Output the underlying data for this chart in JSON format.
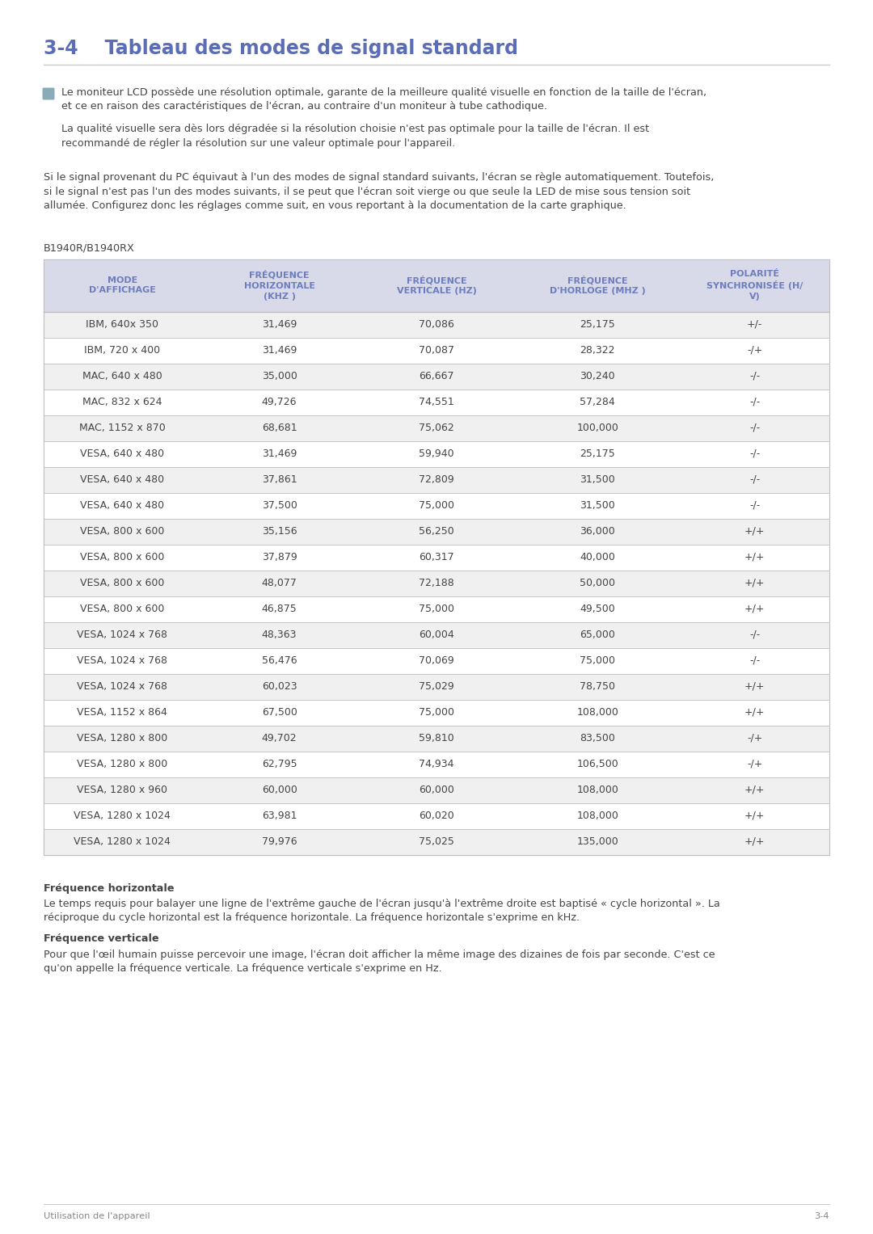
{
  "title": "3-4    Tableau des modes de signal standard",
  "title_color": "#5b6db5",
  "bg_color": "#ffffff",
  "note_icon_color": "#8aacb8",
  "note_text1_line1": "Le moniteur LCD possède une résolution optimale, garante de la meilleure qualité visuelle en fonction de la taille de l'écran,",
  "note_text1_line2": "et ce en raison des caractéristiques de l'écran, au contraire d'un moniteur à tube cathodique.",
  "note_text2_line1": "La qualité visuelle sera dès lors dégradée si la résolution choisie n'est pas optimale pour la taille de l'écran. Il est",
  "note_text2_line2": "recommandé de régler la résolution sur une valeur optimale pour l'appareil.",
  "para_line1": "Si le signal provenant du PC équivaut à l'un des modes de signal standard suivants, l'écran se règle automatiquement. Toutefois,",
  "para_line2": "si le signal n'est pas l'un des modes suivants, il se peut que l'écran soit vierge ou que seule la LED de mise sous tension soit",
  "para_line3": "allumée. Configurez donc les réglages comme suit, en vous reportant à la documentation de la carte graphique.",
  "table_label": "B1940R/B1940RX",
  "col_headers": [
    "MODE\nD'AFFICHAGE",
    "FRÉQUENCE\nHORIZONTALE\n(KHZ )",
    "FRÉQUENCE\nVERTICALE (HZ)",
    "FRÉQUENCE\nD'HORLOGE (MHZ )",
    "POLARITÉ\nSYNCHRONISÉE (H/\nV)"
  ],
  "header_color": "#6e7dbb",
  "header_bg": "#d8daea",
  "row_bg_odd": "#f0f0f0",
  "row_bg_even": "#ffffff",
  "table_border_color": "#c0c0c0",
  "table_data": [
    [
      "IBM, 640x 350",
      "31,469",
      "70,086",
      "25,175",
      "+/-"
    ],
    [
      "IBM, 720 x 400",
      "31,469",
      "70,087",
      "28,322",
      "-/+"
    ],
    [
      "MAC, 640 x 480",
      "35,000",
      "66,667",
      "30,240",
      "-/-"
    ],
    [
      "MAC, 832 x 624",
      "49,726",
      "74,551",
      "57,284",
      "-/-"
    ],
    [
      "MAC, 1152 x 870",
      "68,681",
      "75,062",
      "100,000",
      "-/-"
    ],
    [
      "VESA, 640 x 480",
      "31,469",
      "59,940",
      "25,175",
      "-/-"
    ],
    [
      "VESA, 640 x 480",
      "37,861",
      "72,809",
      "31,500",
      "-/-"
    ],
    [
      "VESA, 640 x 480",
      "37,500",
      "75,000",
      "31,500",
      "-/-"
    ],
    [
      "VESA, 800 x 600",
      "35,156",
      "56,250",
      "36,000",
      "+/+"
    ],
    [
      "VESA, 800 x 600",
      "37,879",
      "60,317",
      "40,000",
      "+/+"
    ],
    [
      "VESA, 800 x 600",
      "48,077",
      "72,188",
      "50,000",
      "+/+"
    ],
    [
      "VESA, 800 x 600",
      "46,875",
      "75,000",
      "49,500",
      "+/+"
    ],
    [
      "VESA, 1024 x 768",
      "48,363",
      "60,004",
      "65,000",
      "-/-"
    ],
    [
      "VESA, 1024 x 768",
      "56,476",
      "70,069",
      "75,000",
      "-/-"
    ],
    [
      "VESA, 1024 x 768",
      "60,023",
      "75,029",
      "78,750",
      "+/+"
    ],
    [
      "VESA, 1152 x 864",
      "67,500",
      "75,000",
      "108,000",
      "+/+"
    ],
    [
      "VESA, 1280 x 800",
      "49,702",
      "59,810",
      "83,500",
      "-/+"
    ],
    [
      "VESA, 1280 x 800",
      "62,795",
      "74,934",
      "106,500",
      "-/+"
    ],
    [
      "VESA, 1280 x 960",
      "60,000",
      "60,000",
      "108,000",
      "+/+"
    ],
    [
      "VESA, 1280 x 1024",
      "63,981",
      "60,020",
      "108,000",
      "+/+"
    ],
    [
      "VESA, 1280 x 1024",
      "79,976",
      "75,025",
      "135,000",
      "+/+"
    ]
  ],
  "footer_bold1": "Fréquence horizontale",
  "footer_text1_line1": "Le temps requis pour balayer une ligne de l'extrême gauche de l'écran jusqu'à l'extrême droite est baptisé « cycle horizontal ». La",
  "footer_text1_line2": "réciproque du cycle horizontal est la fréquence horizontale. La fréquence horizontale s'exprime en kHz.",
  "footer_bold2": "Fréquence verticale",
  "footer_text2_line1": "Pour que l'œil humain puisse percevoir une image, l'écran doit afficher la même image des dizaines de fois par seconde. C'est ce",
  "footer_text2_line2": "qu'on appelle la fréquence verticale. La fréquence verticale s'exprime en Hz.",
  "page_footer_left": "Utilisation de l'appareil",
  "page_footer_right": "3-4",
  "text_color": "#444444",
  "text_color_light": "#888888",
  "line_color": "#cccccc"
}
